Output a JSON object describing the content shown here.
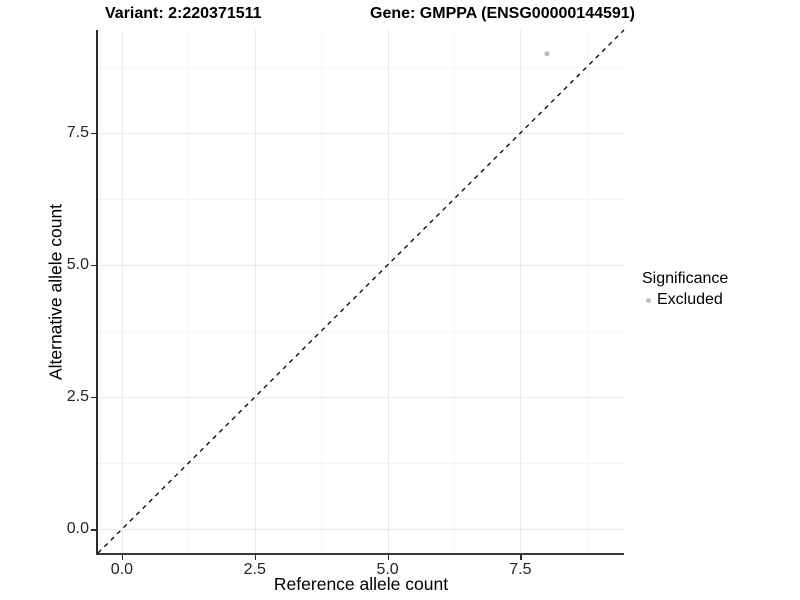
{
  "colors": {
    "background": "#ffffff",
    "grid_major": "#e9e9e9",
    "grid_minor": "#f4f4f4",
    "axis_line": "#2b2b2b",
    "tick_label": "#262626",
    "point": "#bebebe",
    "reference_line": "#000000"
  },
  "chart_data": {
    "type": "scatter",
    "title_variant": "Variant: 2:220371511",
    "title_gene": "Gene: GMPPA (ENSG00000144591)",
    "xlabel": "Reference allele count",
    "ylabel": "Alternative allele count",
    "xlim": [
      -0.45,
      9.45
    ],
    "ylim": [
      -0.45,
      9.45
    ],
    "x_tick_values": [
      0,
      2.5,
      5,
      7.5
    ],
    "x_tick_labels": [
      "0.0",
      "2.5",
      "5.0",
      "7.5"
    ],
    "y_tick_values": [
      0,
      2.5,
      5,
      7.5
    ],
    "y_tick_labels": [
      "0.0",
      "2.5",
      "5.0",
      "7.5"
    ],
    "grid": {
      "major_every": 2.5,
      "minor_every": 1.25,
      "major_on": true,
      "minor_on": true
    },
    "series": [
      {
        "name": "Excluded",
        "color": "#bebebe",
        "point_radius": 2.6,
        "points": [
          {
            "x": 8,
            "y": 9
          }
        ]
      }
    ],
    "reference_line": {
      "equation": "y = x",
      "style": "dashed",
      "color": "#000000"
    },
    "legend": {
      "title": "Significance",
      "position": "right",
      "items": [
        {
          "label": "Excluded",
          "color": "#bebebe"
        }
      ]
    }
  }
}
